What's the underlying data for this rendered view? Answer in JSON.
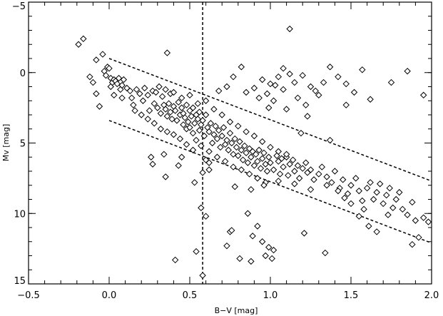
{
  "chart_data": {
    "type": "scatter",
    "title": "",
    "xlabel": "B−V [mag]",
    "ylabel": "Mv [mag]",
    "xlim": [
      -0.5,
      2.0
    ],
    "ylim": [
      15,
      -5
    ],
    "y_inverted": true,
    "grid": false,
    "marker": "diamond",
    "colors": {
      "axis": "#000000",
      "marker_stroke": "#000000",
      "marker_fill": "#ffffff",
      "background": "#ffffff"
    },
    "x_ticks": [
      {
        "value": -0.5,
        "label": "−0.5"
      },
      {
        "value": 0.0,
        "label": "0.0"
      },
      {
        "value": 0.5,
        "label": "0.5"
      },
      {
        "value": 1.0,
        "label": "1.0"
      },
      {
        "value": 1.5,
        "label": "1.5"
      },
      {
        "value": 2.0,
        "label": "2.0"
      }
    ],
    "y_ticks": [
      {
        "value": -5,
        "label": "−5"
      },
      {
        "value": 0,
        "label": "0"
      },
      {
        "value": 5,
        "label": "5"
      },
      {
        "value": 10,
        "label": "10"
      },
      {
        "value": 15,
        "label": "15"
      }
    ],
    "reference_lines": [
      {
        "name": "vertical-cut",
        "type": "dashed",
        "x1": 0.58,
        "y1": -5,
        "x2": 0.58,
        "y2": 15
      },
      {
        "name": "upper-band",
        "type": "dashed",
        "x1": 0.0,
        "y1": -1.0,
        "x2": 2.0,
        "y2": 7.7
      },
      {
        "name": "lower-band",
        "type": "dashed",
        "x1": 0.0,
        "y1": 3.4,
        "x2": 2.0,
        "y2": 12.1
      }
    ],
    "points": [
      [
        -0.19,
        -2.0
      ],
      [
        -0.16,
        -2.4
      ],
      [
        -0.08,
        -0.9
      ],
      [
        -0.04,
        -1.3
      ],
      [
        -0.03,
        -0.1
      ],
      [
        -0.02,
        0.2
      ],
      [
        -0.01,
        -0.4
      ],
      [
        0.0,
        -0.3
      ],
      [
        0.01,
        0.4
      ],
      [
        0.01,
        1.0
      ],
      [
        0.02,
        0.7
      ],
      [
        0.03,
        0.5
      ],
      [
        0.04,
        0.6
      ],
      [
        0.05,
        0.8
      ],
      [
        0.06,
        0.4
      ],
      [
        0.07,
        1.2
      ],
      [
        0.08,
        0.9
      ],
      [
        0.09,
        0.5
      ],
      [
        0.03,
        1.6
      ],
      [
        0.08,
        1.8
      ],
      [
        -0.1,
        0.7
      ],
      [
        -0.08,
        1.5
      ],
      [
        -0.06,
        2.4
      ],
      [
        -0.12,
        0.3
      ],
      [
        0.11,
        1.1
      ],
      [
        0.13,
        1.3
      ],
      [
        0.14,
        1.8
      ],
      [
        0.15,
        2.3
      ],
      [
        0.17,
        1.2
      ],
      [
        0.19,
        1.5
      ],
      [
        0.21,
        2.0
      ],
      [
        0.22,
        1.1
      ],
      [
        0.24,
        1.6
      ],
      [
        0.25,
        2.7
      ],
      [
        0.27,
        1.3
      ],
      [
        0.28,
        2.2
      ],
      [
        0.29,
        1.4
      ],
      [
        0.3,
        2.5
      ],
      [
        0.31,
        1.0
      ],
      [
        0.32,
        2.9
      ],
      [
        0.33,
        1.7
      ],
      [
        0.34,
        2.3
      ],
      [
        0.35,
        2.6
      ],
      [
        0.36,
        3.1
      ],
      [
        0.37,
        2.2
      ],
      [
        0.38,
        2.8
      ],
      [
        0.38,
        1.5
      ],
      [
        0.39,
        3.3
      ],
      [
        0.4,
        2.4
      ],
      [
        0.41,
        2.7
      ],
      [
        0.42,
        3.4
      ],
      [
        0.43,
        2.1
      ],
      [
        0.44,
        3.0
      ],
      [
        0.45,
        2.5
      ],
      [
        0.46,
        3.7
      ],
      [
        0.46,
        2.9
      ],
      [
        0.47,
        3.2
      ],
      [
        0.48,
        2.3
      ],
      [
        0.48,
        4.0
      ],
      [
        0.49,
        3.5
      ],
      [
        0.5,
        2.7
      ],
      [
        0.5,
        3.9
      ],
      [
        0.51,
        3.1
      ],
      [
        0.52,
        2.5
      ],
      [
        0.52,
        4.3
      ],
      [
        0.53,
        3.6
      ],
      [
        0.54,
        3.0
      ],
      [
        0.54,
        4.8
      ],
      [
        0.55,
        3.3
      ],
      [
        0.56,
        2.8
      ],
      [
        0.56,
        4.1
      ],
      [
        0.57,
        3.7
      ],
      [
        0.58,
        3.4
      ],
      [
        0.59,
        4.5
      ],
      [
        0.6,
        3.0
      ],
      [
        0.61,
        3.9
      ],
      [
        0.62,
        4.2
      ],
      [
        0.63,
        3.6
      ],
      [
        0.64,
        5.0
      ],
      [
        0.65,
        4.4
      ],
      [
        0.66,
        3.8
      ],
      [
        0.67,
        4.7
      ],
      [
        0.68,
        4.1
      ],
      [
        0.69,
        5.3
      ],
      [
        0.7,
        4.5
      ],
      [
        0.71,
        3.9
      ],
      [
        0.72,
        5.1
      ],
      [
        0.73,
        4.8
      ],
      [
        0.74,
        5.5
      ],
      [
        0.75,
        4.3
      ],
      [
        0.76,
        5.0
      ],
      [
        0.77,
        5.8
      ],
      [
        0.78,
        4.7
      ],
      [
        0.79,
        5.3
      ],
      [
        0.8,
        5.9
      ],
      [
        0.81,
        4.9
      ],
      [
        0.82,
        5.5
      ],
      [
        0.83,
        6.2
      ],
      [
        0.84,
        5.2
      ],
      [
        0.85,
        5.7
      ],
      [
        0.86,
        6.4
      ],
      [
        0.87,
        5.4
      ],
      [
        0.88,
        6.0
      ],
      [
        0.89,
        5.6
      ],
      [
        0.9,
        6.6
      ],
      [
        0.91,
        5.8
      ],
      [
        0.92,
        6.3
      ],
      [
        0.93,
        5.5
      ],
      [
        0.94,
        6.8
      ],
      [
        0.95,
        6.1
      ],
      [
        0.96,
        5.7
      ],
      [
        0.97,
        6.5
      ],
      [
        0.98,
        7.0
      ],
      [
        0.99,
        6.0
      ],
      [
        1.0,
        6.4
      ],
      [
        1.02,
        6.9
      ],
      [
        1.04,
        5.9
      ],
      [
        1.05,
        6.3
      ],
      [
        1.06,
        7.2
      ],
      [
        1.07,
        6.1
      ],
      [
        1.08,
        6.7
      ],
      [
        1.1,
        6.0
      ],
      [
        1.11,
        7.3
      ],
      [
        1.12,
        6.5
      ],
      [
        1.14,
        6.2
      ],
      [
        1.15,
        7.0
      ],
      [
        1.17,
        6.6
      ],
      [
        1.18,
        7.5
      ],
      [
        1.2,
        6.8
      ],
      [
        1.22,
        6.4
      ],
      [
        1.23,
        7.1
      ],
      [
        1.25,
        6.9
      ],
      [
        1.27,
        7.6
      ],
      [
        1.3,
        7.2
      ],
      [
        1.32,
        6.7
      ],
      [
        1.35,
        7.4
      ],
      [
        1.38,
        7.8
      ],
      [
        1.4,
        7.0
      ],
      [
        1.43,
        8.2
      ],
      [
        1.45,
        7.6
      ],
      [
        1.48,
        8.6
      ],
      [
        1.5,
        8.0
      ],
      [
        1.53,
        7.5
      ],
      [
        1.55,
        8.4
      ],
      [
        1.57,
        9.1
      ],
      [
        1.6,
        8.2
      ],
      [
        1.62,
        7.8
      ],
      [
        1.64,
        9.0
      ],
      [
        1.66,
        8.5
      ],
      [
        1.68,
        7.9
      ],
      [
        1.7,
        9.3
      ],
      [
        1.72,
        8.7
      ],
      [
        1.74,
        8.2
      ],
      [
        1.76,
        9.6
      ],
      [
        1.78,
        9.0
      ],
      [
        1.8,
        8.5
      ],
      [
        1.82,
        9.7
      ],
      [
        1.85,
        10.1
      ],
      [
        1.88,
        9.2
      ],
      [
        1.9,
        10.5
      ],
      [
        1.95,
        10.3
      ],
      [
        1.98,
        10.6
      ],
      [
        1.61,
        10.9
      ],
      [
        1.66,
        11.3
      ],
      [
        1.73,
        10.1
      ],
      [
        1.55,
        10.2
      ],
      [
        1.58,
        9.7
      ],
      [
        1.5,
        9.3
      ],
      [
        1.46,
        8.9
      ],
      [
        1.42,
        8.4
      ],
      [
        0.55,
        2.2
      ],
      [
        0.45,
        1.8
      ],
      [
        0.4,
        1.4
      ],
      [
        0.35,
        1.2
      ],
      [
        0.5,
        1.6
      ],
      [
        0.6,
        2.0
      ],
      [
        0.65,
        2.6
      ],
      [
        0.7,
        3.0
      ],
      [
        0.75,
        3.5
      ],
      [
        0.8,
        3.8
      ],
      [
        0.85,
        4.2
      ],
      [
        0.9,
        4.5
      ],
      [
        0.95,
        4.9
      ],
      [
        1.0,
        5.3
      ],
      [
        1.05,
        5.6
      ],
      [
        1.1,
        5.8
      ],
      [
        0.57,
        5.2
      ],
      [
        0.62,
        5.6
      ],
      [
        0.67,
        6.0
      ],
      [
        0.72,
        6.3
      ],
      [
        0.77,
        6.7
      ],
      [
        0.82,
        6.9
      ],
      [
        0.87,
        7.2
      ],
      [
        0.92,
        7.5
      ],
      [
        0.97,
        7.8
      ],
      [
        0.52,
        5.5
      ],
      [
        0.48,
        5.1
      ],
      [
        0.44,
        4.7
      ],
      [
        0.4,
        4.4
      ],
      [
        0.36,
        4.2
      ],
      [
        0.32,
        4.0
      ],
      [
        0.28,
        3.6
      ],
      [
        0.24,
        3.3
      ],
      [
        0.2,
        3.0
      ],
      [
        0.16,
        2.7
      ],
      [
        0.6,
        6.2
      ],
      [
        0.62,
        6.9
      ],
      [
        0.58,
        7.1
      ],
      [
        0.45,
        6.0
      ],
      [
        0.27,
        6.5
      ],
      [
        0.35,
        7.4
      ],
      [
        0.53,
        7.8
      ],
      [
        0.78,
        8.1
      ],
      [
        0.88,
        8.3
      ],
      [
        0.96,
        8.0
      ],
      [
        1.05,
        7.7
      ],
      [
        1.15,
        7.9
      ],
      [
        1.25,
        8.3
      ],
      [
        1.35,
        8.0
      ],
      [
        1.12,
        0.1
      ],
      [
        1.05,
        0.3
      ],
      [
        1.0,
        0.8
      ],
      [
        0.95,
        0.5
      ],
      [
        0.9,
        1.1
      ],
      [
        0.98,
        1.5
      ],
      [
        1.02,
        2.0
      ],
      [
        1.08,
        1.2
      ],
      [
        1.15,
        0.7
      ],
      [
        1.2,
        0.2
      ],
      [
        1.25,
        1.0
      ],
      [
        1.3,
        1.6
      ],
      [
        1.08,
        -0.3
      ],
      [
        1.03,
        0.9
      ],
      [
        0.93,
        1.8
      ],
      [
        0.85,
        1.4
      ],
      [
        0.82,
        -0.4
      ],
      [
        0.77,
        0.3
      ],
      [
        0.73,
        1.0
      ],
      [
        0.68,
        1.3
      ],
      [
        0.99,
        2.5
      ],
      [
        1.1,
        2.6
      ],
      [
        1.17,
        1.8
      ],
      [
        1.22,
        2.3
      ],
      [
        1.28,
        1.3
      ],
      [
        1.33,
        0.7
      ],
      [
        1.37,
        -0.4
      ],
      [
        1.42,
        0.3
      ],
      [
        1.47,
        0.8
      ],
      [
        1.52,
        1.4
      ],
      [
        1.57,
        -0.2
      ],
      [
        1.62,
        1.9
      ],
      [
        1.75,
        0.7
      ],
      [
        1.85,
        -0.1
      ],
      [
        1.95,
        1.6
      ],
      [
        1.12,
        -3.1
      ],
      [
        0.36,
        -1.4
      ],
      [
        1.23,
        3.1
      ],
      [
        1.19,
        4.3
      ],
      [
        1.37,
        4.8
      ],
      [
        1.47,
        2.3
      ],
      [
        0.86,
        10.0
      ],
      [
        0.92,
        10.9
      ],
      [
        0.95,
        12.0
      ],
      [
        0.99,
        12.4
      ],
      [
        1.02,
        12.6
      ],
      [
        0.89,
        11.6
      ],
      [
        0.97,
        13.0
      ],
      [
        1.01,
        13.2
      ],
      [
        0.81,
        13.2
      ],
      [
        0.75,
        11.3
      ],
      [
        0.76,
        11.2
      ],
      [
        0.73,
        12.3
      ],
      [
        0.58,
        14.4
      ],
      [
        0.57,
        9.6
      ],
      [
        0.6,
        10.2
      ],
      [
        0.41,
        13.3
      ],
      [
        0.54,
        12.7
      ],
      [
        1.21,
        11.4
      ],
      [
        1.34,
        12.8
      ],
      [
        1.88,
        12.2
      ],
      [
        1.92,
        11.7
      ],
      [
        0.88,
        13.4
      ],
      [
        0.62,
        6.4
      ],
      [
        0.26,
        6.0
      ],
      [
        0.34,
        5.8
      ],
      [
        0.43,
        6.6
      ]
    ]
  }
}
